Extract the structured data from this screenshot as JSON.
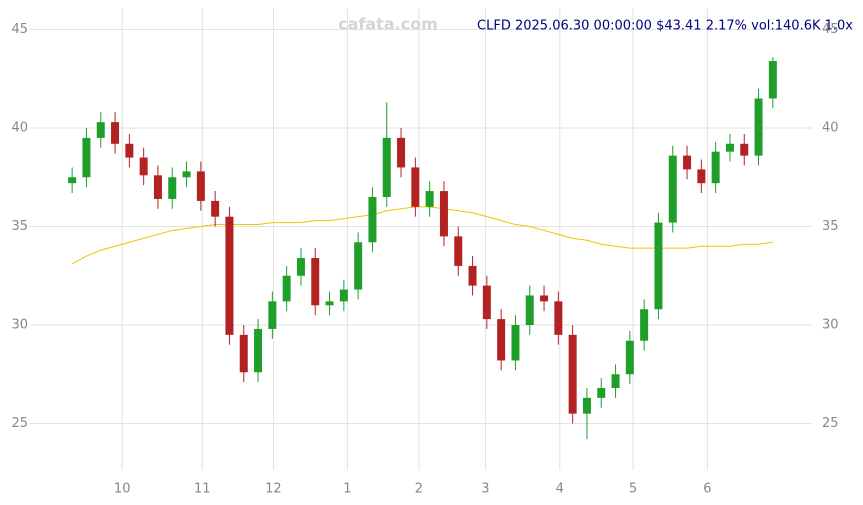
{
  "chart_data": {
    "type": "candlestick",
    "title": "CLFD 2025.06.30 00:00:00 $43.41 2.17% vol:140.6K 1.0x",
    "watermark": "cafata.com",
    "x": [
      0,
      4,
      8,
      12,
      16,
      20,
      24,
      28,
      32,
      36,
      40,
      44,
      48,
      52,
      56,
      60,
      64,
      68,
      72,
      76,
      80,
      84,
      88,
      92,
      96,
      100,
      104,
      108,
      112,
      116,
      120,
      124,
      128,
      132,
      136,
      140,
      144,
      148,
      152,
      156,
      160,
      164,
      168,
      172,
      176,
      180,
      184,
      188,
      192,
      196
    ],
    "open": [
      37.2,
      37.5,
      39.5,
      40.3,
      39.2,
      38.5,
      37.6,
      36.4,
      37.5,
      37.8,
      36.3,
      35.5,
      29.5,
      27.6,
      29.8,
      31.2,
      32.5,
      33.4,
      31.0,
      31.2,
      31.8,
      34.2,
      36.5,
      39.5,
      38.0,
      36.0,
      36.8,
      34.5,
      33.0,
      32.0,
      30.3,
      28.2,
      30.0,
      31.5,
      31.2,
      29.5,
      25.5,
      26.3,
      26.8,
      27.5,
      29.2,
      30.8,
      35.2,
      38.6,
      37.9,
      37.2,
      38.8,
      39.2,
      38.6,
      41.5
    ],
    "high": [
      38.0,
      40.0,
      40.8,
      40.8,
      39.7,
      39.0,
      38.1,
      38.0,
      38.3,
      38.3,
      36.8,
      36.0,
      30.0,
      30.3,
      31.7,
      33.0,
      33.9,
      33.9,
      31.7,
      32.3,
      34.7,
      37.0,
      41.3,
      40.0,
      38.5,
      37.3,
      37.3,
      35.0,
      33.5,
      32.5,
      30.8,
      30.5,
      32.0,
      32.0,
      31.7,
      30.0,
      26.8,
      27.3,
      28.0,
      29.7,
      31.3,
      35.7,
      39.1,
      39.1,
      38.4,
      39.3,
      39.7,
      39.7,
      42.0,
      43.6
    ],
    "low": [
      36.7,
      37.0,
      39.0,
      38.7,
      38.0,
      37.1,
      35.9,
      35.9,
      37.0,
      35.8,
      35.0,
      29.0,
      27.1,
      27.1,
      29.3,
      30.7,
      32.0,
      30.5,
      30.5,
      30.7,
      31.3,
      33.7,
      36.0,
      37.5,
      35.5,
      35.5,
      34.0,
      32.5,
      31.5,
      29.8,
      27.7,
      27.7,
      29.5,
      30.7,
      29.0,
      25.0,
      24.2,
      25.8,
      26.3,
      27.0,
      28.7,
      30.3,
      34.7,
      37.4,
      36.7,
      36.7,
      38.3,
      38.1,
      38.1,
      41.0
    ],
    "close": [
      37.5,
      39.5,
      40.3,
      39.2,
      38.5,
      37.6,
      36.4,
      37.5,
      37.8,
      36.3,
      35.5,
      29.5,
      27.6,
      29.8,
      31.2,
      32.5,
      33.4,
      31.0,
      31.2,
      31.8,
      34.2,
      36.5,
      39.5,
      38.0,
      36.0,
      36.8,
      34.5,
      33.0,
      32.0,
      30.3,
      28.2,
      30.0,
      31.5,
      31.2,
      29.5,
      25.5,
      26.3,
      26.8,
      27.5,
      29.2,
      30.8,
      35.2,
      38.6,
      37.9,
      37.2,
      38.8,
      39.2,
      38.6,
      41.5,
      43.4
    ],
    "up_color": "#1f9e2a",
    "down_color": "#b22222",
    "series": [
      {
        "color": "#f2c200",
        "values": [
          33.1,
          33.5,
          33.8,
          34.0,
          34.2,
          34.4,
          34.6,
          34.8,
          34.9,
          35.0,
          35.1,
          35.1,
          35.1,
          35.1,
          35.2,
          35.2,
          35.2,
          35.3,
          35.3,
          35.4,
          35.5,
          35.6,
          35.8,
          35.9,
          36.0,
          36.0,
          35.9,
          35.8,
          35.7,
          35.5,
          35.3,
          35.1,
          35.0,
          34.8,
          34.6,
          34.4,
          34.3,
          34.1,
          34.0,
          33.9,
          33.9,
          33.9,
          33.9,
          33.9,
          34.0,
          34.0,
          34.0,
          34.1,
          34.1,
          34.2
        ]
      }
    ],
    "xlim": [
      -2,
      198
    ],
    "ylim": [
      23.4,
      46.5
    ],
    "xticks": [
      {
        "value": 14,
        "label": "10"
      },
      {
        "value": 36.4,
        "label": "11"
      },
      {
        "value": 56.3,
        "label": "12"
      },
      {
        "value": 77,
        "label": "1"
      },
      {
        "value": 97,
        "label": "2"
      },
      {
        "value": 115.6,
        "label": "3"
      },
      {
        "value": 136.4,
        "label": "4"
      },
      {
        "value": 156.9,
        "label": "5"
      },
      {
        "value": 177.7,
        "label": "6"
      }
    ],
    "yticks": [
      25,
      30,
      35,
      40,
      45
    ],
    "grid": true
  }
}
